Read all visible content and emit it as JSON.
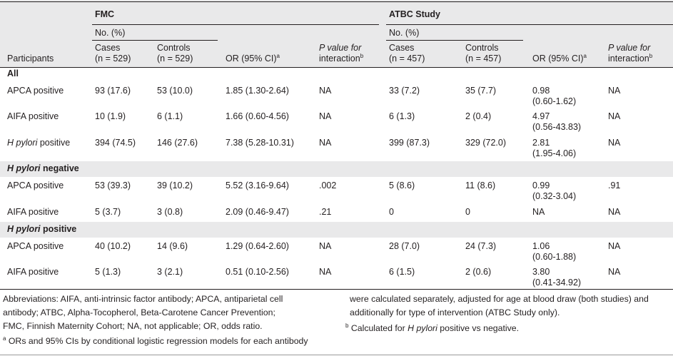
{
  "header": {
    "group1": "FMC",
    "group2": "ATBC Study",
    "no_pct_1": "No. (%)",
    "no_pct_2": "No. (%)",
    "participants": "Participants",
    "cases1_a": "Cases",
    "cases1_b": "(n = 529)",
    "controls1_a": "Controls",
    "controls1_b": "(n = 529)",
    "or1": "OR (95% CI)",
    "or1_sup": "a",
    "p1_a": "P value for",
    "p1_b": "interaction",
    "p1_sup": "b",
    "cases2_a": "Cases",
    "cases2_b": "(n = 457)",
    "controls2_a": "Controls",
    "controls2_b": "(n = 457)",
    "or2": "OR (95% CI)",
    "or2_sup": "a",
    "p2_a": "P value for",
    "p2_b": "interaction",
    "p2_sup": "b"
  },
  "sections": {
    "all": "All",
    "neg_a": "H pylori",
    "neg_b": " negative",
    "pos_a": "H pylori",
    "pos_b": " positive"
  },
  "rows": [
    {
      "label": "APCA positive",
      "c1": "93 (17.6)",
      "k1": "53 (10.0)",
      "or1": "1.85 (1.30-2.64)",
      "p1": "NA",
      "c2": "33 (7.2)",
      "k2": "35 (7.7)",
      "or2a": "0.98",
      "or2b": "(0.60-1.62)",
      "p2": "NA"
    },
    {
      "label": "AIFA positive",
      "c1": "10 (1.9)",
      "k1": "6 (1.1)",
      "or1": "1.66 (0.60-4.56)",
      "p1": "NA",
      "c2": "6 (1.3)",
      "k2": "2 (0.4)",
      "or2a": "4.97",
      "or2b": "(0.56-43.83)",
      "p2": "NA"
    },
    {
      "label_a": "H pylori",
      "label_b": " positive",
      "c1": "394 (74.5)",
      "k1": "146 (27.6)",
      "or1": "7.38 (5.28-10.31)",
      "p1": "NA",
      "c2": "399 (87.3)",
      "k2": "329 (72.0)",
      "or2a": "2.81",
      "or2b": "(1.95-4.06)",
      "p2": "NA"
    },
    {
      "label": "APCA positive",
      "c1": "53 (39.3)",
      "k1": "39 (10.2)",
      "or1": "5.52 (3.16-9.64)",
      "p1": ".002",
      "c2": "5 (8.6)",
      "k2": "11 (8.6)",
      "or2a": "0.99",
      "or2b": "(0.32-3.04)",
      "p2": ".91"
    },
    {
      "label": "AIFA positive",
      "c1": "5 (3.7)",
      "k1": "3 (0.8)",
      "or1": "2.09 (0.46-9.47)",
      "p1": ".21",
      "c2": "0",
      "k2": "0",
      "or2a": "NA",
      "or2b": "",
      "p2": "NA"
    },
    {
      "label": "APCA positive",
      "c1": "40 (10.2)",
      "k1": "14 (9.6)",
      "or1": "1.29 (0.64-2.60)",
      "p1": "NA",
      "c2": "28 (7.0)",
      "k2": "24 (7.3)",
      "or2a": "1.06",
      "or2b": "(0.60-1.88)",
      "p2": "NA"
    },
    {
      "label": "AIFA positive",
      "c1": "5 (1.3)",
      "k1": "3 (2.1)",
      "or1": "0.51 (0.10-2.56)",
      "p1": "NA",
      "c2": "6 (1.5)",
      "k2": "2 (0.6)",
      "or2a": "3.80",
      "or2b": "(0.41-34.92)",
      "p2": "NA"
    }
  ],
  "footnotes": {
    "abbr1": "Abbreviations: AIFA, anti-intrinsic factor antibody; APCA, antiparietal cell",
    "abbr2": "antibody; ATBC, Alpha-Tocopherol, Beta-Carotene Cancer Prevention;",
    "abbr3": "FMC, Finnish Maternity Cohort; NA, not applicable; OR, odds ratio.",
    "a_sup": "a",
    "a_text": " ORs and 95% CIs by conditional logistic regression models for each antibody",
    "cont1": "were calculated separately, adjusted for age at blood draw (both studies) and",
    "cont2": "additionally for type of intervention (ATBC Study only).",
    "b_sup": "b",
    "b_text_pre": " Calculated for ",
    "b_text_em": "H pylori",
    "b_text_post": " positive vs negative."
  }
}
